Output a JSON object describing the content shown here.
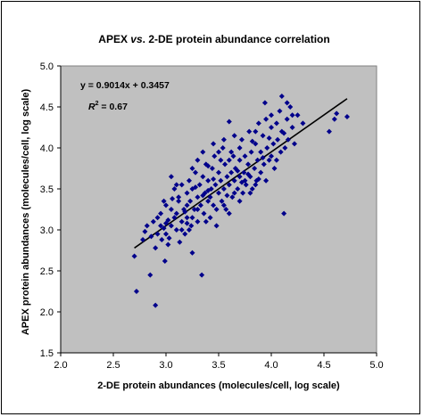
{
  "chart_data": {
    "type": "scatter",
    "title_prefix": "APEX ",
    "title_italic": "vs",
    "title_suffix": ". 2-DE protein abundance correlation",
    "xlabel": "2-DE protein abundances (molecules/cell, log scale)",
    "ylabel": "APEX protein abundances (molecules/cell, log scale)",
    "xlim": [
      2.0,
      5.0
    ],
    "ylim": [
      1.5,
      5.0
    ],
    "xticks": [
      "2.0",
      "2.5",
      "3.0",
      "3.5",
      "4.0",
      "4.5",
      "5.0"
    ],
    "yticks": [
      "1.5",
      "2.0",
      "2.5",
      "3.0",
      "3.5",
      "4.0",
      "4.5",
      "5.0"
    ],
    "xtick_values": [
      2.0,
      2.5,
      3.0,
      3.5,
      4.0,
      4.5,
      5.0
    ],
    "ytick_values": [
      1.5,
      2.0,
      2.5,
      3.0,
      3.5,
      4.0,
      4.5,
      5.0
    ],
    "grid": false,
    "plot_background": "#c0c0c0",
    "marker_color": "#00008b",
    "marker": "diamond",
    "trendline": {
      "slope": 0.9014,
      "intercept": 0.3457,
      "x_range": [
        2.7,
        4.72
      ],
      "color": "#000000"
    },
    "equation_text": "y = 0.9014x + 0.3457",
    "r2_label": "R",
    "r2_sup": "2",
    "r2_value": " = 0.67",
    "points": [
      [
        2.7,
        2.68
      ],
      [
        2.72,
        2.25
      ],
      [
        2.9,
        2.08
      ],
      [
        2.85,
        2.45
      ],
      [
        2.78,
        2.88
      ],
      [
        2.8,
        2.98
      ],
      [
        2.82,
        3.05
      ],
      [
        2.86,
        2.92
      ],
      [
        2.88,
        3.1
      ],
      [
        2.9,
        2.78
      ],
      [
        2.92,
        2.95
      ],
      [
        2.95,
        3.2
      ],
      [
        2.96,
        2.88
      ],
      [
        2.98,
        3.02
      ],
      [
        2.99,
        2.62
      ],
      [
        3.0,
        3.3
      ],
      [
        3.02,
        3.12
      ],
      [
        3.03,
        2.9
      ],
      [
        3.05,
        3.05
      ],
      [
        3.06,
        3.38
      ],
      [
        3.08,
        3.5
      ],
      [
        3.1,
        3.0
      ],
      [
        3.1,
        3.2
      ],
      [
        3.12,
        3.35
      ],
      [
        3.13,
        2.85
      ],
      [
        3.15,
        3.1
      ],
      [
        3.15,
        3.55
      ],
      [
        3.17,
        3.25
      ],
      [
        3.18,
        2.95
      ],
      [
        3.2,
        3.45
      ],
      [
        3.2,
        3.15
      ],
      [
        3.22,
        3.6
      ],
      [
        3.23,
        3.35
      ],
      [
        3.24,
        3.05
      ],
      [
        3.25,
        2.72
      ],
      [
        3.25,
        3.5
      ],
      [
        3.27,
        3.25
      ],
      [
        3.28,
        3.7
      ],
      [
        3.3,
        3.4
      ],
      [
        3.3,
        3.1
      ],
      [
        3.32,
        3.55
      ],
      [
        3.33,
        3.3
      ],
      [
        3.34,
        2.45
      ],
      [
        3.35,
        3.65
      ],
      [
        3.36,
        3.2
      ],
      [
        3.37,
        3.45
      ],
      [
        3.38,
        3.8
      ],
      [
        3.4,
        3.35
      ],
      [
        3.4,
        3.6
      ],
      [
        3.42,
        3.15
      ],
      [
        3.43,
        3.5
      ],
      [
        3.44,
        3.75
      ],
      [
        3.45,
        3.3
      ],
      [
        3.46,
        3.9
      ],
      [
        3.47,
        3.55
      ],
      [
        3.48,
        3.05
      ],
      [
        3.5,
        3.45
      ],
      [
        3.5,
        3.7
      ],
      [
        3.52,
        3.6
      ],
      [
        3.53,
        3.35
      ],
      [
        3.54,
        4.0
      ],
      [
        3.55,
        3.5
      ],
      [
        3.56,
        3.8
      ],
      [
        3.57,
        3.25
      ],
      [
        3.58,
        3.65
      ],
      [
        3.6,
        3.55
      ],
      [
        3.6,
        4.32
      ],
      [
        3.62,
        3.7
      ],
      [
        3.63,
        3.4
      ],
      [
        3.64,
        3.9
      ],
      [
        3.65,
        3.6
      ],
      [
        3.66,
        3.75
      ],
      [
        3.68,
        3.5
      ],
      [
        3.7,
        3.85
      ],
      [
        3.7,
        3.65
      ],
      [
        3.72,
        4.1
      ],
      [
        3.73,
        3.45
      ],
      [
        3.74,
        3.7
      ],
      [
        3.75,
        3.9
      ],
      [
        3.76,
        3.55
      ],
      [
        3.78,
        3.8
      ],
      [
        3.79,
        4.2
      ],
      [
        3.8,
        3.65
      ],
      [
        3.81,
        3.95
      ],
      [
        3.82,
        3.5
      ],
      [
        3.84,
        3.75
      ],
      [
        3.85,
        4.05
      ],
      [
        3.86,
        3.6
      ],
      [
        3.87,
        3.85
      ],
      [
        3.88,
        4.3
      ],
      [
        3.9,
        3.7
      ],
      [
        3.9,
        3.95
      ],
      [
        3.92,
        4.15
      ],
      [
        3.93,
        3.8
      ],
      [
        3.94,
        4.55
      ],
      [
        3.95,
        3.6
      ],
      [
        3.96,
        4.0
      ],
      [
        3.98,
        3.85
      ],
      [
        4.0,
        4.25
      ],
      [
        4.0,
        3.9
      ],
      [
        4.02,
        4.05
      ],
      [
        4.03,
        3.75
      ],
      [
        4.05,
        4.3
      ],
      [
        4.06,
        4.1
      ],
      [
        4.08,
        4.45
      ],
      [
        4.09,
        3.95
      ],
      [
        4.1,
        4.63
      ],
      [
        4.1,
        4.2
      ],
      [
        4.12,
        3.2
      ],
      [
        4.13,
        4.0
      ],
      [
        4.15,
        4.35
      ],
      [
        4.16,
        4.1
      ],
      [
        4.18,
        4.5
      ],
      [
        4.2,
        4.25
      ],
      [
        4.22,
        4.05
      ],
      [
        4.25,
        4.4
      ],
      [
        4.3,
        4.3
      ],
      [
        4.55,
        4.2
      ],
      [
        4.6,
        4.35
      ],
      [
        4.62,
        4.42
      ],
      [
        4.72,
        4.38
      ],
      [
        3.0,
        2.95
      ],
      [
        3.05,
        3.25
      ],
      [
        3.12,
        3.4
      ],
      [
        3.18,
        3.22
      ],
      [
        3.22,
        3.0
      ],
      [
        3.28,
        3.52
      ],
      [
        3.35,
        3.42
      ],
      [
        3.4,
        3.78
      ],
      [
        3.45,
        3.62
      ],
      [
        3.52,
        3.85
      ],
      [
        3.58,
        3.42
      ],
      [
        3.62,
        3.95
      ],
      [
        3.68,
        3.72
      ],
      [
        3.72,
        3.58
      ],
      [
        3.78,
        3.68
      ],
      [
        3.82,
        4.08
      ],
      [
        3.88,
        3.62
      ],
      [
        3.92,
        3.88
      ],
      [
        3.98,
        4.12
      ],
      [
        4.05,
        3.85
      ],
      [
        4.12,
        4.18
      ],
      [
        2.92,
        3.15
      ],
      [
        2.98,
        3.35
      ],
      [
        3.02,
        2.82
      ],
      [
        3.08,
        3.15
      ],
      [
        3.15,
        3.0
      ],
      [
        3.2,
        3.3
      ],
      [
        3.25,
        3.15
      ],
      [
        3.3,
        3.25
      ],
      [
        3.38,
        3.1
      ],
      [
        3.42,
        3.4
      ],
      [
        3.48,
        3.25
      ],
      [
        3.55,
        3.3
      ],
      [
        3.6,
        3.2
      ],
      [
        3.65,
        3.45
      ],
      [
        3.7,
        3.35
      ],
      [
        3.75,
        3.6
      ],
      [
        3.8,
        3.45
      ],
      [
        3.85,
        3.55
      ],
      [
        3.5,
        3.95
      ],
      [
        3.55,
        4.1
      ],
      [
        3.45,
        4.05
      ],
      [
        3.65,
        4.15
      ],
      [
        3.7,
        4.0
      ],
      [
        3.35,
        3.95
      ],
      [
        3.3,
        3.85
      ],
      [
        3.25,
        3.75
      ],
      [
        3.1,
        3.55
      ],
      [
        3.05,
        3.65
      ],
      [
        4.0,
        4.4
      ],
      [
        3.95,
        4.35
      ],
      [
        4.15,
        4.55
      ],
      [
        4.2,
        4.4
      ],
      [
        3.85,
        4.2
      ],
      [
        3.6,
        3.85
      ],
      [
        3.4,
        3.48
      ],
      [
        3.2,
        3.08
      ],
      [
        3.0,
        3.08
      ],
      [
        2.95,
        3.05
      ]
    ]
  }
}
